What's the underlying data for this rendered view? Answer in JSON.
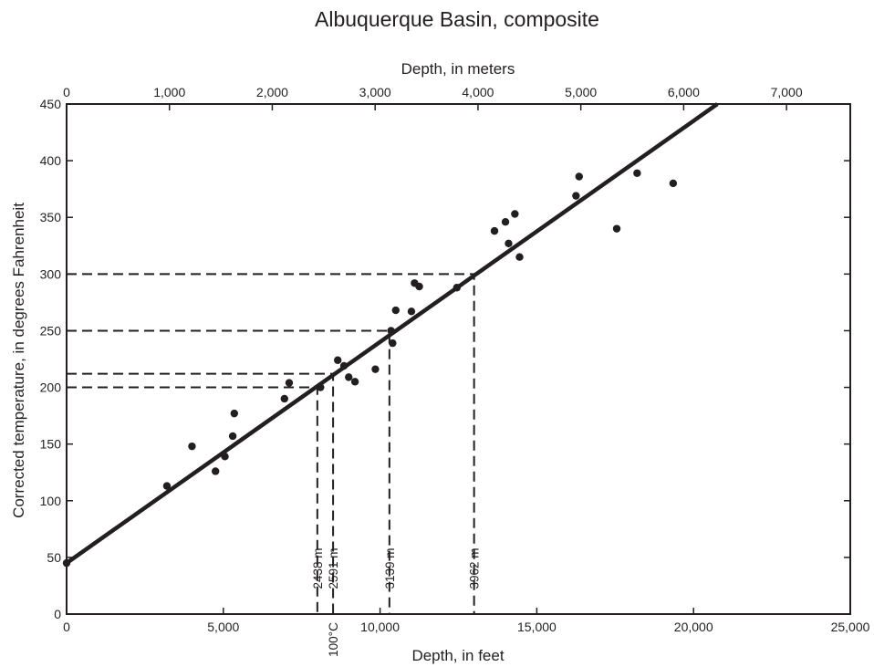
{
  "chart_data": {
    "type": "scatter",
    "title": "Albuquerque Basin, composite",
    "xlabel": "Depth, in feet",
    "x2label": "Depth, in meters",
    "ylabel": "Corrected temperature, in degrees Fahrenheit",
    "xlim": [
      0,
      25000
    ],
    "x2lim": [
      0,
      7620
    ],
    "ylim": [
      0,
      450
    ],
    "xticks": [
      0,
      5000,
      10000,
      15000,
      20000,
      25000
    ],
    "xtick_labels": [
      "0",
      "5,000",
      "10,000",
      "15,000",
      "20,000",
      "25,000"
    ],
    "x2ticks": [
      0,
      1000,
      2000,
      3000,
      4000,
      5000,
      6000,
      7000
    ],
    "x2tick_labels": [
      "0",
      "1,000",
      "2,000",
      "3,000",
      "4,000",
      "5,000",
      "6,000",
      "7,000"
    ],
    "yticks": [
      0,
      50,
      100,
      150,
      200,
      250,
      300,
      350,
      400,
      450
    ],
    "ytick_labels": [
      "0",
      "50",
      "100",
      "150",
      "200",
      "250",
      "300",
      "350",
      "400",
      "450"
    ],
    "grid": false,
    "series": [
      {
        "type": "scatter",
        "points": [
          [
            0,
            45
          ],
          [
            3200,
            113
          ],
          [
            4000,
            148
          ],
          [
            4750,
            126
          ],
          [
            5050,
            139
          ],
          [
            5300,
            157
          ],
          [
            5350,
            177
          ],
          [
            6950,
            190
          ],
          [
            7100,
            204
          ],
          [
            8100,
            200
          ],
          [
            8650,
            224
          ],
          [
            8850,
            219
          ],
          [
            9000,
            209
          ],
          [
            9200,
            205
          ],
          [
            9850,
            216
          ],
          [
            10350,
            250
          ],
          [
            10400,
            239
          ],
          [
            10500,
            268
          ],
          [
            11000,
            267
          ],
          [
            11100,
            292
          ],
          [
            11250,
            289
          ],
          [
            12450,
            288
          ],
          [
            13650,
            338
          ],
          [
            14000,
            346
          ],
          [
            14100,
            327
          ],
          [
            14300,
            353
          ],
          [
            14450,
            315
          ],
          [
            16250,
            369
          ],
          [
            16350,
            386
          ],
          [
            17550,
            340
          ],
          [
            18200,
            389
          ],
          [
            19350,
            380
          ]
        ]
      },
      {
        "type": "line",
        "points": [
          [
            0,
            45
          ],
          [
            20760,
            450
          ]
        ]
      }
    ],
    "reference_lines": [
      {
        "temperature": 200,
        "depth_ft": 7999,
        "label": "2438 m"
      },
      {
        "temperature": 212,
        "depth_ft": 8501,
        "label": "2591 m",
        "bottom_label": "100°C"
      },
      {
        "temperature": 250,
        "depth_ft": 10298,
        "label": "3139 m"
      },
      {
        "temperature": 300,
        "depth_ft": 12999,
        "label": "3962 m"
      }
    ]
  }
}
